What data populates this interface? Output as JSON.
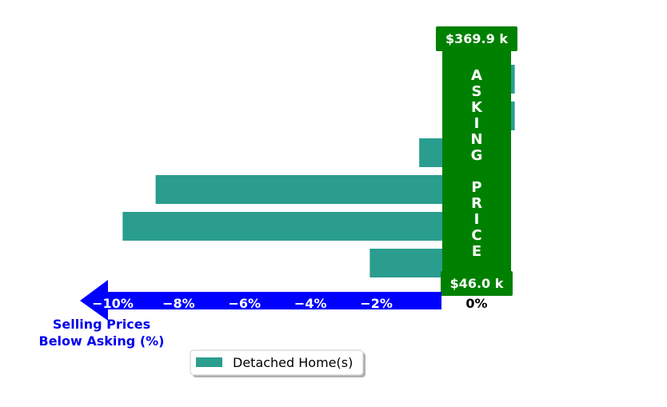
{
  "chart_data": {
    "type": "bar",
    "orientation": "horizontal",
    "series": [
      {
        "name": "Detached Home(s)",
        "values": [
          2.2,
          2.2,
          -0.7,
          -8.7,
          -9.7,
          -2.2
        ],
        "color": "#2a9d8f"
      }
    ],
    "x_ticks": [
      "−10%",
      "−8%",
      "−6%",
      "−4%",
      "−2%",
      "0%"
    ],
    "x_tick_values": [
      -10,
      -8,
      -6,
      -4,
      -2,
      0
    ],
    "xlim": [
      -11.2,
      2.2
    ],
    "axis_label": [
      "Selling Prices",
      "Below Asking (%)"
    ],
    "asking_label": [
      "A",
      "S",
      "K",
      "I",
      "N",
      "G",
      "",
      "P",
      "R",
      "I",
      "C",
      "E"
    ],
    "price_high": "$369.9 k",
    "price_low": "$46.0 k",
    "legend": {
      "position": "bottom-center"
    },
    "colors": {
      "bar": "#2a9d8f",
      "asking": "#008000",
      "arrow": "#0000ff",
      "label": "#0000ee"
    }
  }
}
